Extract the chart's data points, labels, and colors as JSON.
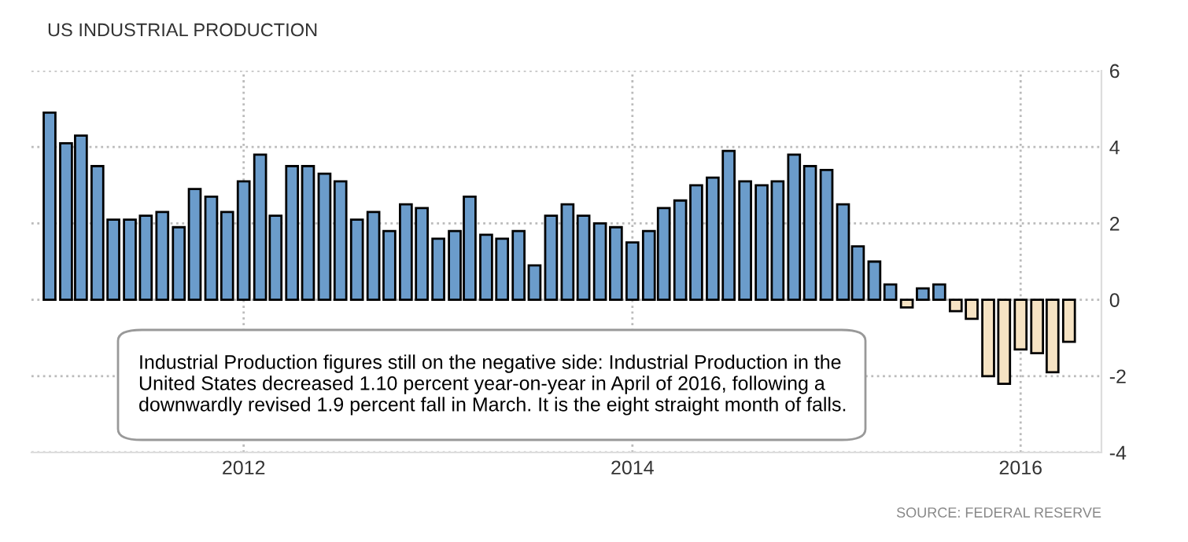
{
  "chart_data": {
    "type": "bar",
    "title": "US INDUSTRIAL PRODUCTION",
    "x": [
      "2011-01",
      "2011-02",
      "2011-03",
      "2011-04",
      "2011-05",
      "2011-06",
      "2011-07",
      "2011-08",
      "2011-09",
      "2011-10",
      "2011-11",
      "2011-12",
      "2012-01",
      "2012-02",
      "2012-03",
      "2012-04",
      "2012-05",
      "2012-06",
      "2012-07",
      "2012-08",
      "2012-09",
      "2012-10",
      "2012-11",
      "2012-12",
      "2013-01",
      "2013-02",
      "2013-03",
      "2013-04",
      "2013-05",
      "2013-06",
      "2013-07",
      "2013-08",
      "2013-09",
      "2013-10",
      "2013-11",
      "2013-12",
      "2014-01",
      "2014-02",
      "2014-03",
      "2014-04",
      "2014-05",
      "2014-06",
      "2014-07",
      "2014-08",
      "2014-09",
      "2014-10",
      "2014-11",
      "2014-12",
      "2015-01",
      "2015-02",
      "2015-03",
      "2015-04",
      "2015-05",
      "2015-06",
      "2015-07",
      "2015-08",
      "2015-09",
      "2015-10",
      "2015-11",
      "2015-12",
      "2016-01",
      "2016-02",
      "2016-03",
      "2016-04"
    ],
    "values": [
      4.9,
      4.1,
      4.3,
      3.5,
      2.1,
      2.1,
      2.2,
      2.3,
      1.9,
      2.9,
      2.7,
      2.3,
      3.1,
      3.8,
      2.2,
      3.5,
      3.5,
      3.3,
      3.1,
      2.1,
      2.3,
      1.8,
      2.5,
      2.4,
      1.6,
      1.8,
      2.7,
      1.7,
      1.6,
      1.8,
      0.9,
      2.2,
      2.5,
      2.2,
      2.0,
      1.9,
      1.5,
      1.8,
      2.4,
      2.6,
      3.0,
      3.2,
      3.9,
      3.1,
      3.0,
      3.1,
      3.8,
      3.5,
      3.4,
      2.5,
      1.4,
      1.0,
      0.4,
      -0.2,
      0.3,
      0.4,
      -0.3,
      -0.5,
      -2.0,
      -2.2,
      -1.3,
      -1.4,
      -1.9,
      -1.1
    ],
    "colors": [
      "#6b9ccb",
      "#6b9ccb",
      "#6b9ccb",
      "#6b9ccb",
      "#6b9ccb",
      "#6b9ccb",
      "#6b9ccb",
      "#6b9ccb",
      "#6b9ccb",
      "#6b9ccb",
      "#6b9ccb",
      "#6b9ccb",
      "#6b9ccb",
      "#6b9ccb",
      "#6b9ccb",
      "#6b9ccb",
      "#6b9ccb",
      "#6b9ccb",
      "#6b9ccb",
      "#6b9ccb",
      "#6b9ccb",
      "#6b9ccb",
      "#6b9ccb",
      "#6b9ccb",
      "#6b9ccb",
      "#6b9ccb",
      "#6b9ccb",
      "#6b9ccb",
      "#6b9ccb",
      "#6b9ccb",
      "#6b9ccb",
      "#6b9ccb",
      "#6b9ccb",
      "#6b9ccb",
      "#6b9ccb",
      "#6b9ccb",
      "#6b9ccb",
      "#6b9ccb",
      "#6b9ccb",
      "#6b9ccb",
      "#6b9ccb",
      "#6b9ccb",
      "#6b9ccb",
      "#6b9ccb",
      "#6b9ccb",
      "#6b9ccb",
      "#6b9ccb",
      "#6b9ccb",
      "#6b9ccb",
      "#6b9ccb",
      "#6b9ccb",
      "#6b9ccb",
      "#6b9ccb",
      "#f6e3c3",
      "#6b9ccb",
      "#6b9ccb",
      "#f6e3c3",
      "#f6e3c3",
      "#f6e3c3",
      "#f6e3c3",
      "#f6e3c3",
      "#f6e3c3",
      "#f6e3c3",
      "#f6e3c3"
    ],
    "xlim": [
      "2010-11-28",
      "2016-06-01"
    ],
    "xticks": [
      {
        "value": "2012-01-01",
        "label": "2012"
      },
      {
        "value": "2014-01-01",
        "label": "2014"
      },
      {
        "value": "2016-01-01",
        "label": "2016"
      }
    ],
    "ylim": [
      -4,
      6
    ],
    "yticks": [
      -4,
      -2,
      0,
      2,
      4,
      6
    ],
    "grid": true,
    "annotations": [
      "Industrial Production figures still on the negative side: Industrial Production in the\nUnited States decreased 1.10 percent year-on-year in April of 2016, following a\ndownwardly revised 1.9 percent fall in March. It is the eight straight month of falls.",
      "SOURCE: FEDERAL RESERVE"
    ]
  }
}
